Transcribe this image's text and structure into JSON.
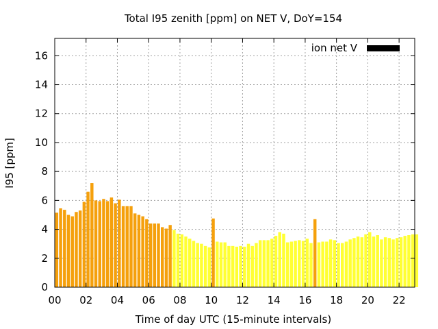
{
  "chart_data": {
    "type": "bar",
    "title": "Total I95 zenith [ppm] on NET V, DoY=154",
    "xlabel": "Time of day UTC (15-minute intervals)",
    "ylabel": "I95 [ppm]",
    "xlim": [
      0,
      23
    ],
    "ylim": [
      0,
      17.2
    ],
    "xticks": [
      "00",
      "02",
      "04",
      "06",
      "08",
      "10",
      "12",
      "14",
      "16",
      "18",
      "20",
      "22"
    ],
    "yticks": [
      "0",
      "2",
      "4",
      "6",
      "8",
      "10",
      "12",
      "14",
      "16"
    ],
    "grid": true,
    "legend": {
      "position": "top-right",
      "entries": [
        {
          "name": "ion net V",
          "color": "#000000"
        }
      ]
    },
    "colors": {
      "orange": "#f5a00c",
      "yellow": "#ffff33"
    },
    "interval_hours": 0.25,
    "values": [
      5.15,
      5.45,
      5.35,
      5.0,
      4.9,
      5.2,
      5.3,
      5.9,
      6.6,
      7.2,
      6.0,
      5.95,
      6.1,
      5.95,
      6.2,
      5.8,
      6.05,
      5.6,
      5.6,
      5.6,
      5.1,
      5.0,
      4.9,
      4.7,
      4.4,
      4.4,
      4.4,
      4.15,
      4.05,
      4.3,
      3.95,
      3.7,
      3.65,
      3.5,
      3.35,
      3.2,
      3.05,
      3.0,
      2.85,
      2.75,
      4.75,
      3.15,
      3.1,
      3.1,
      2.85,
      2.85,
      2.8,
      2.85,
      2.8,
      3.0,
      2.85,
      3.05,
      3.25,
      3.25,
      3.25,
      3.35,
      3.55,
      3.8,
      3.7,
      3.1,
      3.15,
      3.2,
      3.25,
      3.2,
      3.35,
      3.05,
      4.7,
      3.1,
      3.15,
      3.15,
      3.3,
      3.25,
      3.05,
      3.05,
      3.15,
      3.3,
      3.4,
      3.5,
      3.45,
      3.65,
      3.8,
      3.5,
      3.6,
      3.3,
      3.45,
      3.4,
      3.3,
      3.4,
      3.45,
      3.55,
      3.6,
      3.65,
      3.65
    ],
    "series_color": [
      "orange",
      "orange",
      "orange",
      "orange",
      "orange",
      "orange",
      "orange",
      "orange",
      "orange",
      "orange",
      "orange",
      "orange",
      "orange",
      "orange",
      "orange",
      "orange",
      "orange",
      "orange",
      "orange",
      "orange",
      "orange",
      "orange",
      "orange",
      "orange",
      "orange",
      "orange",
      "orange",
      "orange",
      "orange",
      "orange",
      "yellow",
      "yellow",
      "yellow",
      "yellow",
      "yellow",
      "yellow",
      "yellow",
      "yellow",
      "yellow",
      "yellow",
      "orange",
      "yellow",
      "yellow",
      "yellow",
      "yellow",
      "yellow",
      "yellow",
      "yellow",
      "yellow",
      "yellow",
      "yellow",
      "yellow",
      "yellow",
      "yellow",
      "yellow",
      "yellow",
      "yellow",
      "yellow",
      "yellow",
      "yellow",
      "yellow",
      "yellow",
      "yellow",
      "yellow",
      "yellow",
      "yellow",
      "orange",
      "yellow",
      "yellow",
      "yellow",
      "yellow",
      "yellow",
      "yellow",
      "yellow",
      "yellow",
      "yellow",
      "yellow",
      "yellow",
      "yellow",
      "yellow",
      "yellow",
      "yellow",
      "yellow",
      "yellow",
      "yellow",
      "yellow",
      "yellow",
      "yellow",
      "yellow",
      "yellow",
      "yellow",
      "yellow",
      "yellow"
    ]
  }
}
